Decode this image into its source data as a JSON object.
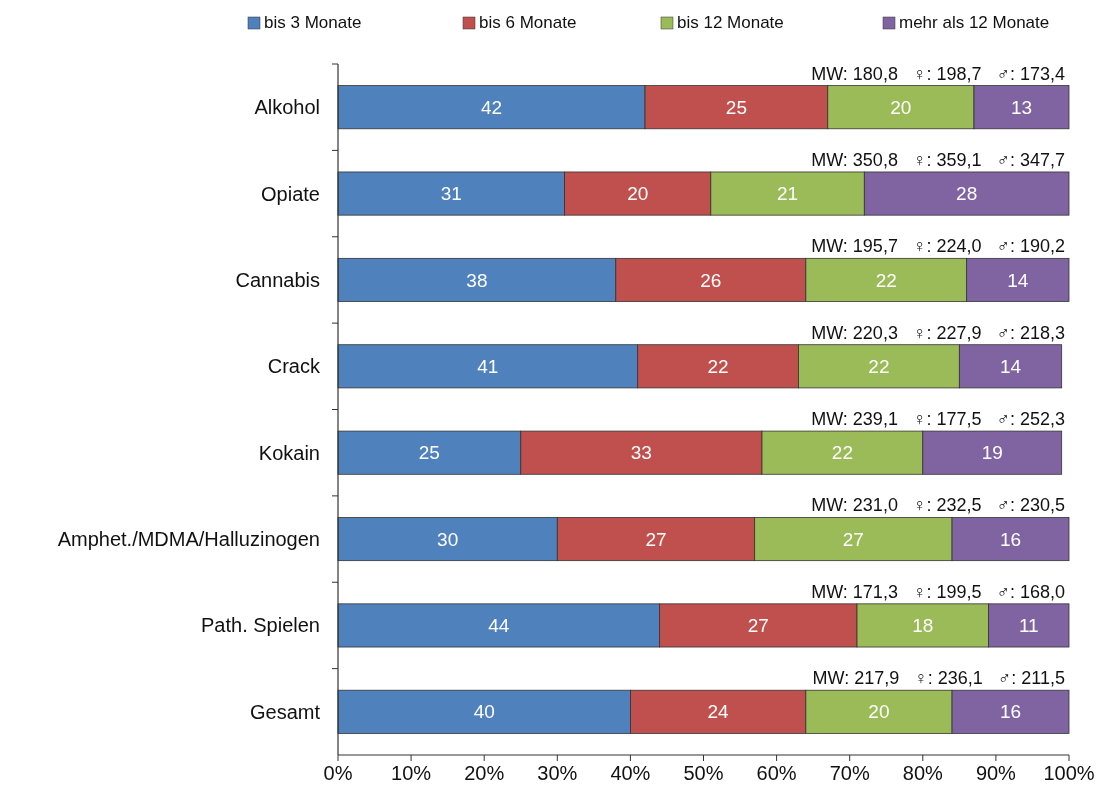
{
  "chart_data": {
    "type": "bar",
    "orientation": "horizontal",
    "stacked": true,
    "data_labels": true,
    "legend": "top",
    "grid": false,
    "categories": [
      "Alkohol",
      "Opiate",
      "Cannabis",
      "Crack",
      "Kokain",
      "Amphet./MDMA/Halluzinogen",
      "Path. Spielen",
      "Gesamt"
    ],
    "series": [
      {
        "name": "bis 3 Monate",
        "color": "#4f81bd",
        "values": [
          42,
          31,
          38,
          41,
          25,
          30,
          44,
          40
        ]
      },
      {
        "name": "bis 6 Monate",
        "color": "#c0504d",
        "values": [
          25,
          20,
          26,
          22,
          33,
          27,
          27,
          24
        ]
      },
      {
        "name": "bis 12 Monate",
        "color": "#9bbb59",
        "values": [
          20,
          21,
          22,
          22,
          22,
          27,
          18,
          20
        ]
      },
      {
        "name": "mehr als 12 Monate",
        "color": "#8064a2",
        "values": [
          13,
          28,
          14,
          14,
          19,
          16,
          11,
          16
        ]
      }
    ],
    "xlim": [
      0,
      100
    ],
    "xticks": [
      {
        "value": 0,
        "label": "0%"
      },
      {
        "value": 10,
        "label": "10%"
      },
      {
        "value": 20,
        "label": "20%"
      },
      {
        "value": 30,
        "label": "30%"
      },
      {
        "value": 40,
        "label": "40%"
      },
      {
        "value": 50,
        "label": "50%"
      },
      {
        "value": 60,
        "label": "60%"
      },
      {
        "value": 70,
        "label": "70%"
      },
      {
        "value": 80,
        "label": "80%"
      },
      {
        "value": 90,
        "label": "90%"
      },
      {
        "value": 100,
        "label": "100%"
      }
    ],
    "annotations": [
      "MW: 180,8   ♀: 198,7   ♂: 173,4",
      "MW: 350,8   ♀: 359,1   ♂: 347,7",
      "MW: 195,7   ♀: 224,0   ♂: 190,2",
      "MW: 220,3   ♀: 227,9   ♂: 218,3",
      "MW: 239,1   ♀: 177,5   ♂: 252,3",
      "MW: 231,0   ♀: 232,5   ♂: 230,5",
      "MW: 171,3   ♀: 199,5   ♂: 168,0",
      "MW: 217,9   ♀: 236,1   ♂: 211,5"
    ]
  }
}
